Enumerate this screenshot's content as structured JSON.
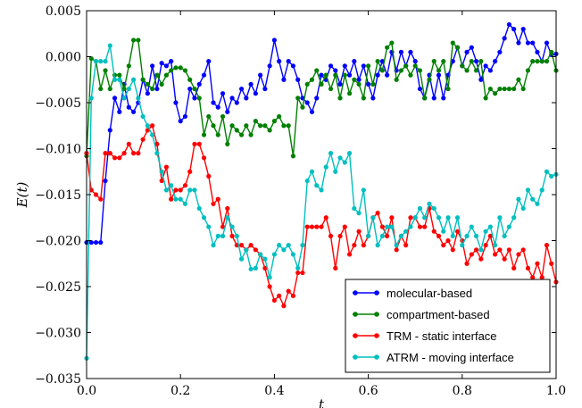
{
  "chart_data": {
    "type": "line",
    "title": "",
    "xlabel": "t",
    "ylabel": "E(t)",
    "xlim": [
      0.0,
      1.0
    ],
    "ylim": [
      -0.035,
      0.005
    ],
    "x_ticks": [
      "0.0",
      "0.2",
      "0.4",
      "0.6",
      "0.8",
      "1.0"
    ],
    "y_ticks": [
      "0.005",
      "0.000",
      "−0.005",
      "−0.010",
      "−0.015",
      "−0.020",
      "−0.025",
      "−0.030",
      "−0.035"
    ],
    "grid": false,
    "legend_position": "lower-right",
    "series": [
      {
        "name": "molecular-based",
        "color": "#0000ff",
        "x": [
          0.0,
          0.01,
          0.02,
          0.03,
          0.04,
          0.05,
          0.06,
          0.07,
          0.08,
          0.09,
          0.1,
          0.11,
          0.12,
          0.13,
          0.14,
          0.15,
          0.16,
          0.17,
          0.18,
          0.19,
          0.2,
          0.21,
          0.22,
          0.23,
          0.24,
          0.25,
          0.26,
          0.27,
          0.28,
          0.29,
          0.3,
          0.31,
          0.32,
          0.33,
          0.34,
          0.35,
          0.36,
          0.37,
          0.38,
          0.39,
          0.4,
          0.41,
          0.42,
          0.43,
          0.44,
          0.45,
          0.46,
          0.47,
          0.48,
          0.49,
          0.5,
          0.51,
          0.52,
          0.53,
          0.54,
          0.55,
          0.56,
          0.57,
          0.58,
          0.59,
          0.6,
          0.61,
          0.62,
          0.63,
          0.64,
          0.65,
          0.66,
          0.67,
          0.68,
          0.69,
          0.7,
          0.71,
          0.72,
          0.73,
          0.74,
          0.75,
          0.76,
          0.77,
          0.78,
          0.79,
          0.8,
          0.81,
          0.82,
          0.83,
          0.84,
          0.85,
          0.86,
          0.87,
          0.88,
          0.89,
          0.9,
          0.91,
          0.92,
          0.93,
          0.94,
          0.95,
          0.96,
          0.97,
          0.98,
          0.99,
          1.0
        ],
        "y": [
          -0.0202,
          -0.0202,
          -0.0202,
          -0.0202,
          -0.0135,
          -0.008,
          -0.0045,
          -0.006,
          -0.003,
          -0.0055,
          -0.006,
          -0.005,
          -0.0025,
          -0.004,
          -0.001,
          -0.0035,
          -0.0007,
          -0.001,
          -0.0005,
          -0.005,
          -0.007,
          -0.0065,
          -0.0035,
          -0.0045,
          -0.003,
          -0.002,
          -0.0005,
          -0.005,
          -0.0055,
          -0.004,
          -0.006,
          -0.0045,
          -0.005,
          -0.0035,
          -0.0045,
          -0.003,
          -0.004,
          -0.002,
          -0.0035,
          -0.001,
          0.0018,
          -0.0005,
          -0.0025,
          -0.0005,
          -0.001,
          -0.0025,
          -0.0045,
          -0.005,
          -0.006,
          -0.0045,
          -0.002,
          -0.0025,
          -0.001,
          -0.0015,
          -0.003,
          -0.001,
          -0.002,
          -0.0005,
          -0.0025,
          -0.001,
          -0.003,
          -0.0045,
          -0.002,
          -0.0005,
          -0.002,
          0.0005,
          -0.0015,
          0.0005,
          -0.001,
          0.0005,
          -0.0005,
          -0.0035,
          -0.0045,
          -0.002,
          -0.0045,
          -0.002,
          -0.0045,
          -0.002,
          -0.0005,
          0.001,
          -0.001,
          0.0005,
          0.001,
          -0.0005,
          -0.0025,
          -0.001,
          -0.0015,
          -0.0005,
          0.0005,
          0.002,
          0.0035,
          0.003,
          0.0015,
          0.003,
          0.0015,
          0.0015,
          0.0005,
          -0.0005,
          0.0015,
          0.0002,
          0.0003
        ]
      },
      {
        "name": "compartment-based",
        "color": "#008000",
        "x": [
          0.0,
          0.01,
          0.02,
          0.03,
          0.04,
          0.05,
          0.06,
          0.07,
          0.08,
          0.09,
          0.1,
          0.11,
          0.12,
          0.13,
          0.14,
          0.15,
          0.16,
          0.17,
          0.18,
          0.19,
          0.2,
          0.21,
          0.22,
          0.23,
          0.24,
          0.25,
          0.26,
          0.27,
          0.28,
          0.29,
          0.3,
          0.31,
          0.32,
          0.33,
          0.34,
          0.35,
          0.36,
          0.37,
          0.38,
          0.39,
          0.4,
          0.41,
          0.42,
          0.43,
          0.44,
          0.45,
          0.46,
          0.47,
          0.48,
          0.49,
          0.5,
          0.51,
          0.52,
          0.53,
          0.54,
          0.55,
          0.56,
          0.57,
          0.58,
          0.59,
          0.6,
          0.61,
          0.62,
          0.63,
          0.64,
          0.65,
          0.66,
          0.67,
          0.68,
          0.69,
          0.7,
          0.71,
          0.72,
          0.73,
          0.74,
          0.75,
          0.76,
          0.77,
          0.78,
          0.79,
          0.8,
          0.81,
          0.82,
          0.83,
          0.84,
          0.85,
          0.86,
          0.87,
          0.88,
          0.89,
          0.9,
          0.91,
          0.92,
          0.93,
          0.94,
          0.95,
          0.96,
          0.97,
          0.98,
          0.99,
          1.0
        ],
        "y": [
          -0.0108,
          -0.0002,
          -0.0005,
          -0.0035,
          -0.0015,
          -0.0035,
          -0.002,
          -0.002,
          -0.0035,
          -0.001,
          0.0018,
          0.0018,
          -0.0025,
          -0.003,
          -0.0035,
          -0.002,
          -0.003,
          -0.002,
          -0.0015,
          -0.0012,
          -0.0012,
          -0.0015,
          -0.0025,
          -0.0035,
          -0.0045,
          -0.0085,
          -0.0065,
          -0.0075,
          -0.0085,
          -0.0065,
          -0.0095,
          -0.0075,
          -0.008,
          -0.0085,
          -0.0075,
          -0.0085,
          -0.007,
          -0.0075,
          -0.0075,
          -0.008,
          -0.007,
          -0.0065,
          -0.0075,
          -0.0075,
          -0.0108,
          -0.0045,
          -0.0055,
          -0.003,
          -0.0025,
          -0.0015,
          -0.003,
          -0.002,
          -0.0035,
          -0.002,
          -0.0045,
          -0.002,
          -0.004,
          -0.0025,
          -0.003,
          -0.0045,
          -0.001,
          -0.003,
          -0.0005,
          -0.0015,
          0.001,
          0.0015,
          -0.0025,
          -0.0015,
          -0.001,
          -0.002,
          -0.001,
          -0.0015,
          -0.0045,
          -0.0025,
          -0.0005,
          -0.0015,
          -0.0005,
          -0.0035,
          0.0015,
          0.001,
          -0.001,
          -0.0015,
          -0.0005,
          -0.0015,
          -0.0005,
          -0.0045,
          -0.0035,
          -0.004,
          -0.0035,
          -0.0035,
          -0.0035,
          -0.0035,
          -0.0025,
          -0.0035,
          -0.0015,
          -0.0005,
          -0.0005,
          -0.0005,
          -0.0005,
          0.0005,
          -0.0015
        ]
      },
      {
        "name": "TRM - static interface",
        "color": "#ff0000",
        "x": [
          0.0,
          0.01,
          0.02,
          0.03,
          0.04,
          0.05,
          0.06,
          0.07,
          0.08,
          0.09,
          0.1,
          0.11,
          0.12,
          0.13,
          0.14,
          0.15,
          0.16,
          0.17,
          0.18,
          0.19,
          0.2,
          0.21,
          0.22,
          0.23,
          0.24,
          0.25,
          0.26,
          0.27,
          0.28,
          0.29,
          0.3,
          0.31,
          0.32,
          0.33,
          0.34,
          0.35,
          0.36,
          0.37,
          0.38,
          0.39,
          0.4,
          0.41,
          0.42,
          0.43,
          0.44,
          0.45,
          0.46,
          0.47,
          0.48,
          0.49,
          0.5,
          0.51,
          0.52,
          0.53,
          0.54,
          0.55,
          0.56,
          0.57,
          0.58,
          0.59,
          0.6,
          0.61,
          0.62,
          0.63,
          0.64,
          0.65,
          0.66,
          0.67,
          0.68,
          0.69,
          0.7,
          0.71,
          0.72,
          0.73,
          0.74,
          0.75,
          0.76,
          0.77,
          0.78,
          0.79,
          0.8,
          0.81,
          0.82,
          0.83,
          0.84,
          0.85,
          0.86,
          0.87,
          0.88,
          0.89,
          0.9,
          0.91,
          0.92,
          0.93,
          0.94,
          0.95,
          0.96,
          0.97,
          0.98,
          0.99,
          1.0
        ],
        "y": [
          -0.0105,
          -0.0145,
          -0.015,
          -0.0155,
          -0.0105,
          -0.0105,
          -0.011,
          -0.011,
          -0.0105,
          -0.0095,
          -0.0105,
          -0.0105,
          -0.009,
          -0.008,
          -0.0075,
          -0.0095,
          -0.0135,
          -0.012,
          -0.0155,
          -0.0145,
          -0.0145,
          -0.014,
          -0.0125,
          -0.0095,
          -0.0095,
          -0.011,
          -0.013,
          -0.016,
          -0.0155,
          -0.0185,
          -0.0165,
          -0.0195,
          -0.0205,
          -0.0205,
          -0.021,
          -0.0205,
          -0.021,
          -0.0215,
          -0.023,
          -0.025,
          -0.0265,
          -0.026,
          -0.0271,
          -0.0255,
          -0.026,
          -0.0235,
          -0.0235,
          -0.0185,
          -0.0185,
          -0.0185,
          -0.0185,
          -0.0175,
          -0.0195,
          -0.023,
          -0.0195,
          -0.0185,
          -0.0215,
          -0.0205,
          -0.019,
          -0.0205,
          -0.0195,
          -0.0175,
          -0.017,
          -0.0185,
          -0.0195,
          -0.0175,
          -0.021,
          -0.0195,
          -0.0205,
          -0.0175,
          -0.0175,
          -0.0185,
          -0.0185,
          -0.0165,
          -0.019,
          -0.0195,
          -0.0205,
          -0.02,
          -0.021,
          -0.019,
          -0.02,
          -0.0225,
          -0.0215,
          -0.021,
          -0.022,
          -0.0205,
          -0.0195,
          -0.0215,
          -0.021,
          -0.022,
          -0.021,
          -0.023,
          -0.0215,
          -0.021,
          -0.023,
          -0.024,
          -0.0225,
          -0.024,
          -0.0205,
          -0.0225,
          -0.0245
        ]
      },
      {
        "name": "ATRM - moving interface",
        "color": "#00bfbf",
        "x": [
          0.0,
          0.01,
          0.02,
          0.03,
          0.04,
          0.05,
          0.06,
          0.07,
          0.08,
          0.09,
          0.1,
          0.11,
          0.12,
          0.13,
          0.14,
          0.15,
          0.16,
          0.17,
          0.18,
          0.19,
          0.2,
          0.21,
          0.22,
          0.23,
          0.24,
          0.25,
          0.26,
          0.27,
          0.28,
          0.29,
          0.3,
          0.31,
          0.32,
          0.33,
          0.34,
          0.35,
          0.36,
          0.37,
          0.38,
          0.39,
          0.4,
          0.41,
          0.42,
          0.43,
          0.44,
          0.45,
          0.46,
          0.47,
          0.48,
          0.49,
          0.5,
          0.51,
          0.52,
          0.53,
          0.54,
          0.55,
          0.56,
          0.57,
          0.58,
          0.59,
          0.6,
          0.61,
          0.62,
          0.63,
          0.64,
          0.65,
          0.66,
          0.67,
          0.68,
          0.69,
          0.7,
          0.71,
          0.72,
          0.73,
          0.74,
          0.75,
          0.76,
          0.77,
          0.78,
          0.79,
          0.8,
          0.81,
          0.82,
          0.83,
          0.84,
          0.85,
          0.86,
          0.87,
          0.88,
          0.89,
          0.9,
          0.91,
          0.92,
          0.93,
          0.94,
          0.95,
          0.96,
          0.97,
          0.98,
          0.99,
          1.0
        ],
        "y": [
          -0.0328,
          -0.0045,
          -0.0005,
          -0.0005,
          -0.0005,
          0.0012,
          -0.0025,
          -0.0025,
          -0.0045,
          -0.0035,
          -0.0025,
          -0.0045,
          -0.0065,
          -0.0075,
          -0.0085,
          -0.0105,
          -0.0125,
          -0.0145,
          -0.014,
          -0.0155,
          -0.0155,
          -0.016,
          -0.0145,
          -0.0145,
          -0.0165,
          -0.0175,
          -0.0185,
          -0.0205,
          -0.0195,
          -0.0195,
          -0.0175,
          -0.0185,
          -0.0195,
          -0.022,
          -0.021,
          -0.0231,
          -0.023,
          -0.0215,
          -0.022,
          -0.024,
          -0.0215,
          -0.0205,
          -0.021,
          -0.0205,
          -0.0215,
          -0.023,
          -0.0205,
          -0.0135,
          -0.0125,
          -0.014,
          -0.0145,
          -0.012,
          -0.0105,
          -0.0125,
          -0.011,
          -0.0115,
          -0.0105,
          -0.0165,
          -0.017,
          -0.0145,
          -0.0195,
          -0.0175,
          -0.0205,
          -0.0195,
          -0.0185,
          -0.0185,
          -0.0205,
          -0.0195,
          -0.019,
          -0.0185,
          -0.0175,
          -0.0165,
          -0.0175,
          -0.016,
          -0.0165,
          -0.0175,
          -0.019,
          -0.0175,
          -0.0195,
          -0.0175,
          -0.0205,
          -0.0195,
          -0.0185,
          -0.0195,
          -0.021,
          -0.019,
          -0.0185,
          -0.0205,
          -0.0175,
          -0.0195,
          -0.0185,
          -0.0175,
          -0.0155,
          -0.0165,
          -0.0145,
          -0.0155,
          -0.016,
          -0.0145,
          -0.0125,
          -0.013,
          -0.0128
        ]
      }
    ]
  }
}
